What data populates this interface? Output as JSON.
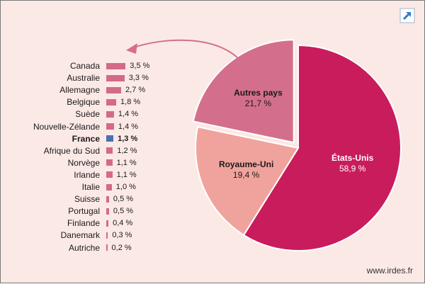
{
  "footer_text": "www.irdes.fr",
  "icons": {
    "export": "external-link-icon"
  },
  "colors": {
    "background": "#fbe9e6",
    "bar": "#d36a88",
    "bar_highlight": "#4a6fb5",
    "etats_unis": "#c91c5c",
    "royaume_uni": "#f0a39c",
    "autres_pays": "#d36f8c",
    "arrow": "#d36f8c"
  },
  "chart_data": [
    {
      "type": "bar",
      "orientation": "horizontal",
      "categories": [
        "Canada",
        "Australie",
        "Allemagne",
        "Belgique",
        "Suède",
        "Nouvelle-Zélande",
        "France",
        "Afrique du Sud",
        "Norvège",
        "Irlande",
        "Italie",
        "Suisse",
        "Portugal",
        "Finlande",
        "Danemark",
        "Autriche"
      ],
      "values": [
        3.5,
        3.3,
        2.7,
        1.8,
        1.4,
        1.4,
        1.3,
        1.2,
        1.1,
        1.1,
        1.0,
        0.5,
        0.5,
        0.4,
        0.3,
        0.2
      ],
      "value_labels": [
        "3,5 %",
        "3,3 %",
        "2,7 %",
        "1,8 %",
        "1,4 %",
        "1,4 %",
        "1,3 %",
        "1,2 %",
        "1,1 %",
        "1,1 %",
        "1,0 %",
        "0,5 %",
        "0,5 %",
        "0,4 %",
        "0,3 %",
        "0,2 %"
      ],
      "highlight": "France",
      "grid": false,
      "legend": "none"
    },
    {
      "type": "pie",
      "slices": [
        {
          "name": "États-Unis",
          "value": 58.9,
          "label": "58,9 %",
          "color": "#c91c5c"
        },
        {
          "name": "Royaume-Uni",
          "value": 19.4,
          "label": "19,4 %",
          "color": "#f0a39c"
        },
        {
          "name": "Autres pays",
          "value": 21.7,
          "label": "21,7 %",
          "color": "#d36f8c",
          "exploded": true
        }
      ],
      "legend": "none"
    }
  ]
}
